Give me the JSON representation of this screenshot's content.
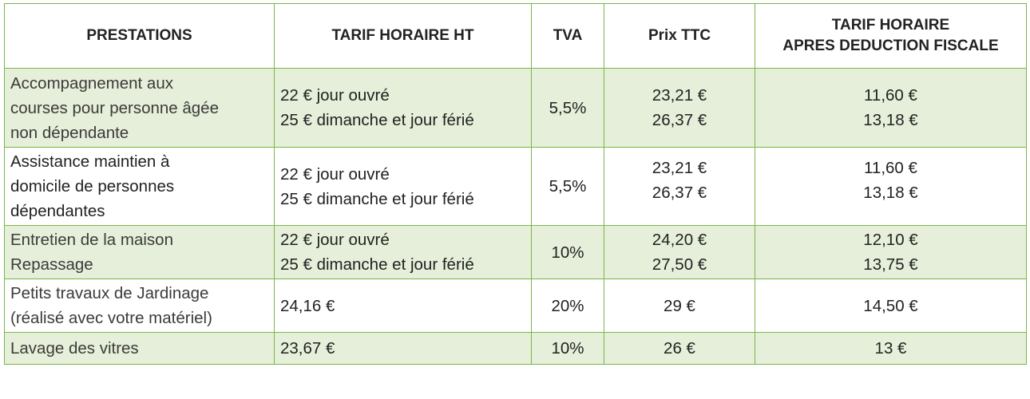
{
  "table": {
    "headers": {
      "prestations": "PRESTATIONS",
      "tarif_ht": "TARIF HORAIRE HT",
      "tva": "TVA",
      "prix_ttc": "Prix TTC",
      "tarif_fiscal_line1": "TARIF HORAIRE",
      "tarif_fiscal_line2": "APRES DEDUCTION FISCALE"
    },
    "rows": [
      {
        "name": [
          "Accompagnement aux",
          "courses pour personne âgée",
          "non dépendante"
        ],
        "tarif_ht": [
          "22 € jour ouvré",
          "25 € dimanche et jour férié"
        ],
        "tva": "5,5%",
        "prix_ttc": [
          "23,21 €",
          "26,37 €"
        ],
        "tarif_fiscal": [
          "11,60 €",
          "13,18 €"
        ]
      },
      {
        "name": [
          "Assistance maintien à",
          "domicile de personnes",
          "dépendantes"
        ],
        "tarif_ht": [
          "22 € jour ouvré",
          "25 € dimanche et jour férié"
        ],
        "tva": "5,5%",
        "prix_ttc": [
          "23,21 €",
          "26,37 €"
        ],
        "tarif_fiscal": [
          "11,60 €",
          "13,18 €"
        ]
      },
      {
        "name": [
          "Entretien de la maison",
          "Repassage"
        ],
        "tarif_ht": [
          "22 € jour ouvré",
          "25 € dimanche et jour férié"
        ],
        "tva": "10%",
        "prix_ttc": [
          "24,20 €",
          "27,50 €"
        ],
        "tarif_fiscal": [
          "12,10 €",
          "13,75 €"
        ]
      },
      {
        "name": [
          "Petits travaux de Jardinage",
          "(réalisé avec votre matériel)"
        ],
        "tarif_ht": [
          "24,16 €"
        ],
        "tva": "20%",
        "prix_ttc": [
          "29 €"
        ],
        "tarif_fiscal": [
          "14,50 €"
        ]
      },
      {
        "name": [
          "Lavage des vitres"
        ],
        "tarif_ht": [
          "23,67 €"
        ],
        "tva": "10%",
        "prix_ttc": [
          "26 €"
        ],
        "tarif_fiscal": [
          "13 €"
        ]
      }
    ],
    "colors": {
      "border": "#7ab648",
      "shaded_row": "#e6efd9",
      "text": "#222222"
    }
  }
}
